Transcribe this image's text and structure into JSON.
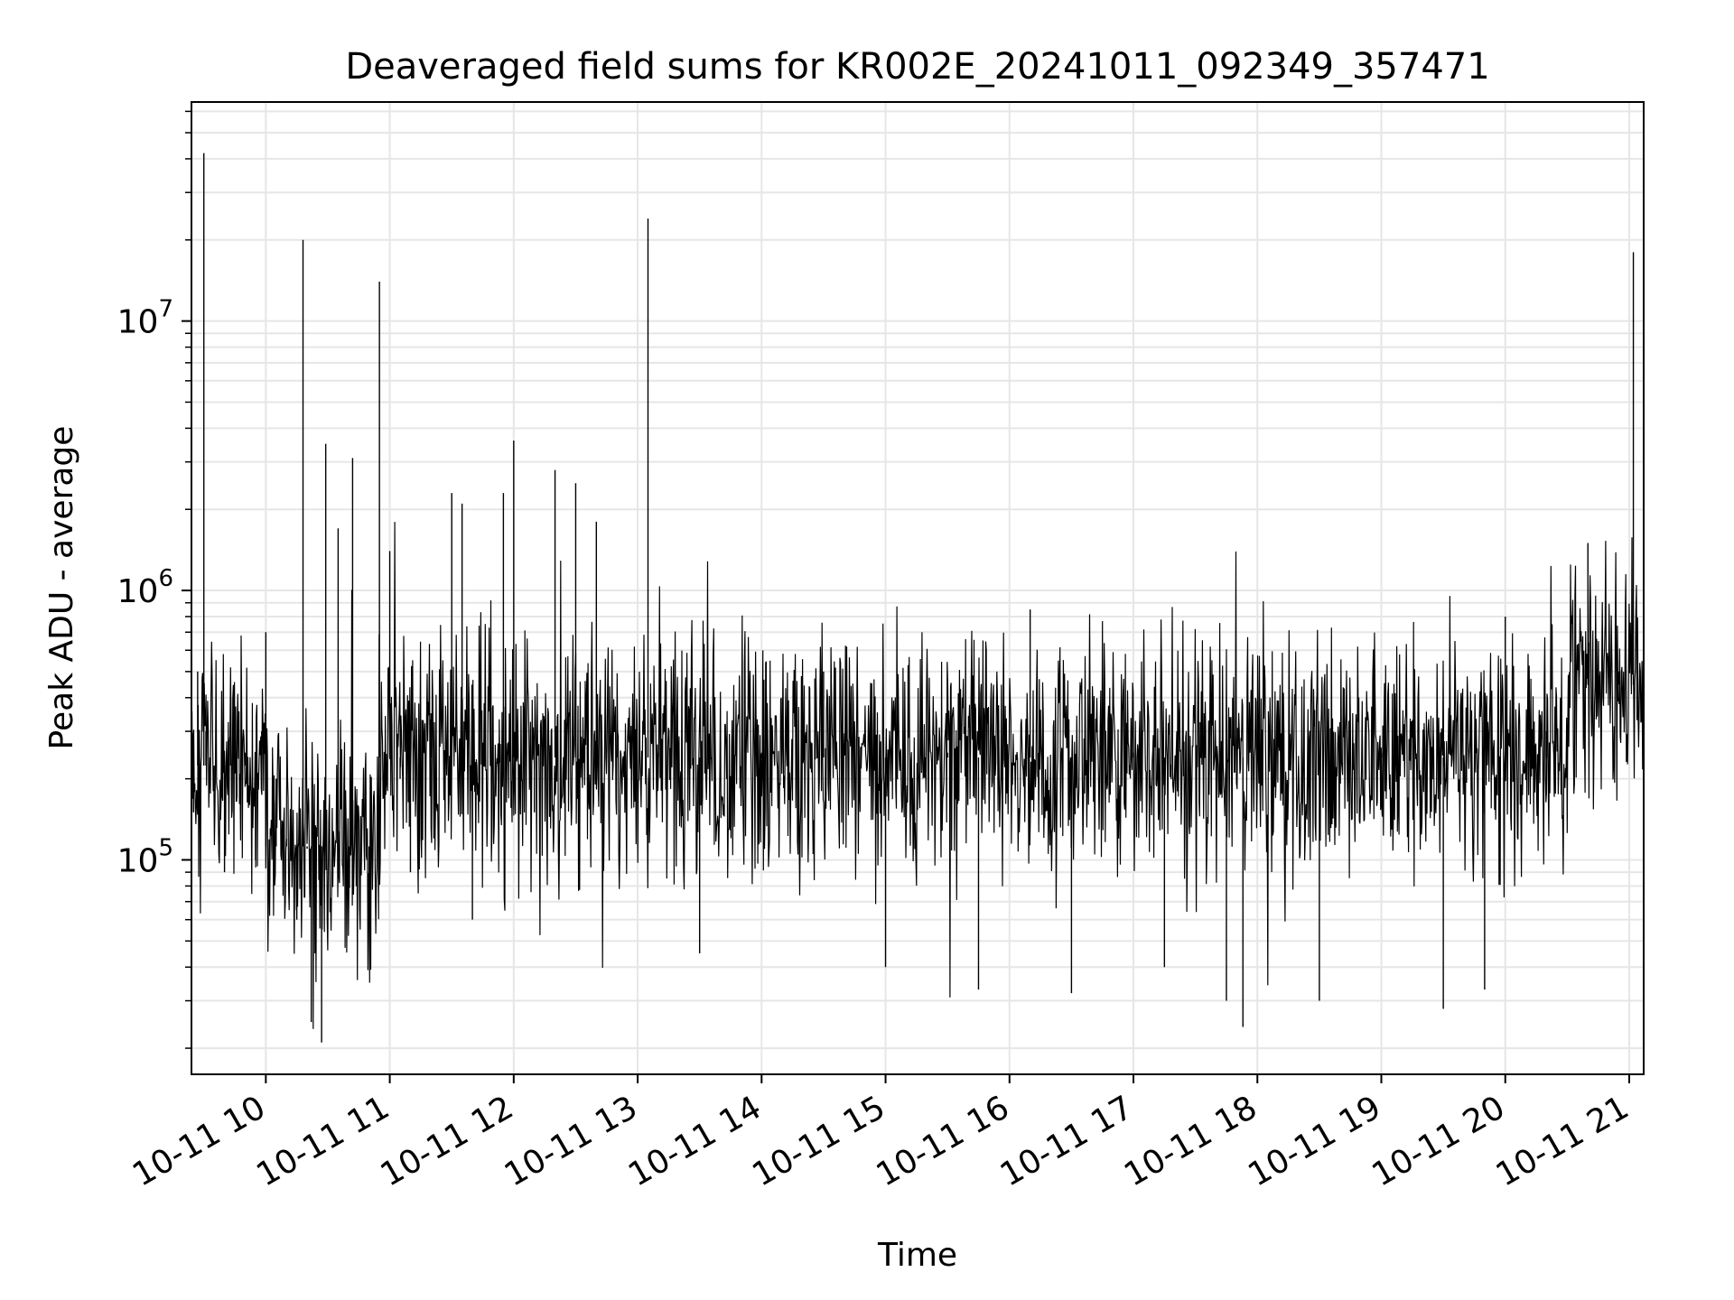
{
  "chart_data": {
    "type": "line",
    "title": "Deaveraged field sums for KR002E_20241011_092349_357471",
    "xlabel": "Time",
    "ylabel": "Peak ADU - average",
    "x_scale": "time",
    "y_scale": "log",
    "xlim": [
      "2024-10-11 09:24",
      "2024-10-11 21:07"
    ],
    "ylim": [
      16000,
      65000000
    ],
    "x_ticks": [
      {
        "t": "2024-10-11 10:00",
        "label": "10-11 10"
      },
      {
        "t": "2024-10-11 11:00",
        "label": "10-11 11"
      },
      {
        "t": "2024-10-11 12:00",
        "label": "10-11 12"
      },
      {
        "t": "2024-10-11 13:00",
        "label": "10-11 13"
      },
      {
        "t": "2024-10-11 14:00",
        "label": "10-11 14"
      },
      {
        "t": "2024-10-11 15:00",
        "label": "10-11 15"
      },
      {
        "t": "2024-10-11 16:00",
        "label": "10-11 16"
      },
      {
        "t": "2024-10-11 17:00",
        "label": "10-11 17"
      },
      {
        "t": "2024-10-11 18:00",
        "label": "10-11 18"
      },
      {
        "t": "2024-10-11 19:00",
        "label": "10-11 19"
      },
      {
        "t": "2024-10-11 20:00",
        "label": "10-11 20"
      },
      {
        "t": "2024-10-11 21:00",
        "label": "10-11 21"
      }
    ],
    "y_ticks": [
      {
        "value": 100000,
        "base": "10",
        "exp": "5"
      },
      {
        "value": 1000000,
        "base": "10",
        "exp": "6"
      },
      {
        "value": 10000000,
        "base": "10",
        "exp": "7"
      }
    ],
    "grid": "major and minor, both axes",
    "line_color": "#000000",
    "grid_color": "#e6e6e6",
    "series": [
      {
        "style": "thin black line, dense noisy trace",
        "points": [
          [
            "2024-10-11 09:25",
            150000
          ],
          [
            "2024-10-11 09:27",
            500000
          ],
          [
            "2024-10-11 09:30",
            42000000
          ],
          [
            "2024-10-11 09:31",
            300000
          ],
          [
            "2024-10-11 09:35",
            180000
          ],
          [
            "2024-10-11 09:40",
            90000
          ],
          [
            "2024-10-11 09:43",
            400000
          ],
          [
            "2024-10-11 09:46",
            170000
          ],
          [
            "2024-10-11 09:50",
            250000
          ],
          [
            "2024-10-11 09:55",
            100000
          ],
          [
            "2024-10-11 09:58",
            300000
          ],
          [
            "2024-10-11 10:00",
            700000
          ],
          [
            "2024-10-11 10:05",
            200000
          ],
          [
            "2024-10-11 10:10",
            120000
          ],
          [
            "2024-10-11 10:15",
            60000
          ],
          [
            "2024-10-11 10:18",
            20000000
          ],
          [
            "2024-10-11 10:20",
            110000
          ],
          [
            "2024-10-11 10:22",
            25000
          ],
          [
            "2024-10-11 10:27",
            21000
          ],
          [
            "2024-10-11 10:29",
            3500000
          ],
          [
            "2024-10-11 10:35",
            1700000
          ],
          [
            "2024-10-11 10:40",
            80000
          ],
          [
            "2024-10-11 10:42",
            3100000
          ],
          [
            "2024-10-11 10:50",
            70000
          ],
          [
            "2024-10-11 10:55",
            14000000
          ],
          [
            "2024-10-11 11:00",
            1400000
          ],
          [
            "2024-10-11 11:05",
            200000
          ],
          [
            "2024-10-11 11:10",
            90000
          ],
          [
            "2024-10-11 11:20",
            350000
          ],
          [
            "2024-10-11 11:30",
            2300000
          ],
          [
            "2024-10-11 11:35",
            2100000
          ],
          [
            "2024-10-11 11:40",
            60000
          ],
          [
            "2024-10-11 11:55",
            2300000
          ],
          [
            "2024-10-11 12:00",
            3600000
          ],
          [
            "2024-10-11 12:10",
            150000
          ],
          [
            "2024-10-11 12:20",
            2800000
          ],
          [
            "2024-10-11 12:30",
            2500000
          ],
          [
            "2024-10-11 12:40",
            1800000
          ],
          [
            "2024-10-11 12:50",
            300000
          ],
          [
            "2024-10-11 13:05",
            24000000
          ],
          [
            "2024-10-11 13:10",
            250000
          ],
          [
            "2024-10-11 13:30",
            45000
          ],
          [
            "2024-10-11 14:00",
            250000
          ],
          [
            "2024-10-11 14:30",
            500000
          ],
          [
            "2024-10-11 15:00",
            40000
          ],
          [
            "2024-10-11 15:30",
            250000
          ],
          [
            "2024-10-11 15:45",
            33000
          ],
          [
            "2024-10-11 16:10",
            850000
          ],
          [
            "2024-10-11 16:30",
            32000
          ],
          [
            "2024-10-11 17:00",
            250000
          ],
          [
            "2024-10-11 17:15",
            40000
          ],
          [
            "2024-10-11 17:45",
            30000
          ],
          [
            "2024-10-11 17:53",
            24000
          ],
          [
            "2024-10-11 18:00",
            250000
          ],
          [
            "2024-10-11 18:30",
            30000
          ],
          [
            "2024-10-11 19:00",
            250000
          ],
          [
            "2024-10-11 19:30",
            28000
          ],
          [
            "2024-10-11 19:50",
            33000
          ],
          [
            "2024-10-11 20:00",
            800000
          ],
          [
            "2024-10-11 20:20",
            300000
          ],
          [
            "2024-10-11 20:40",
            1500000
          ],
          [
            "2024-10-11 20:55",
            500000
          ],
          [
            "2024-10-11 21:02",
            18000000
          ],
          [
            "2024-10-11 21:07",
            600000
          ]
        ]
      }
    ]
  }
}
